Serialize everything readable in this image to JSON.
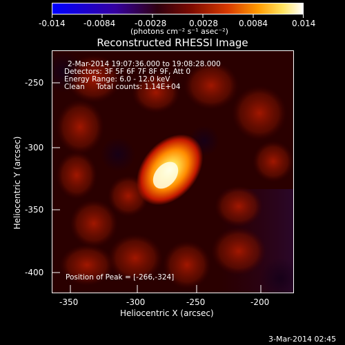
{
  "colorbar": {
    "ticks": [
      "-0.014",
      "-0.0084",
      "-0.0028",
      "0.0028",
      "0.0084",
      "0.014"
    ],
    "units": "(photons cm⁻² s⁻¹ asec⁻²)",
    "colors": [
      "#0000ff",
      "#3a00a6",
      "#3a0012",
      "#8a1000",
      "#d23a00",
      "#ff8f00",
      "#ffe650",
      "#ffffff"
    ]
  },
  "title": "Reconstructed RHESSI Image",
  "info": {
    "line1": "2-Mar-2014 19:07:36.000 to 19:08:28.000",
    "line2": "Detectors: 3F 5F 6F 7F 8F 9F, Att 0",
    "line3": "Energy Range: 6.0 - 12.0 keV",
    "line4": "Clean     Total counts: 1.14E+04"
  },
  "peak_label": "Position of Peak = [-266,-324]",
  "x_axis": {
    "label": "Heliocentric X (arcsec)",
    "ticks": [
      "-350",
      "-300",
      "-250",
      "-200"
    ]
  },
  "y_axis": {
    "label": "Heliocentric Y (arcsec)",
    "ticks": [
      "-250",
      "-300",
      "-350",
      "-400"
    ]
  },
  "footer_timestamp": "3-Mar-2014 02:45"
}
